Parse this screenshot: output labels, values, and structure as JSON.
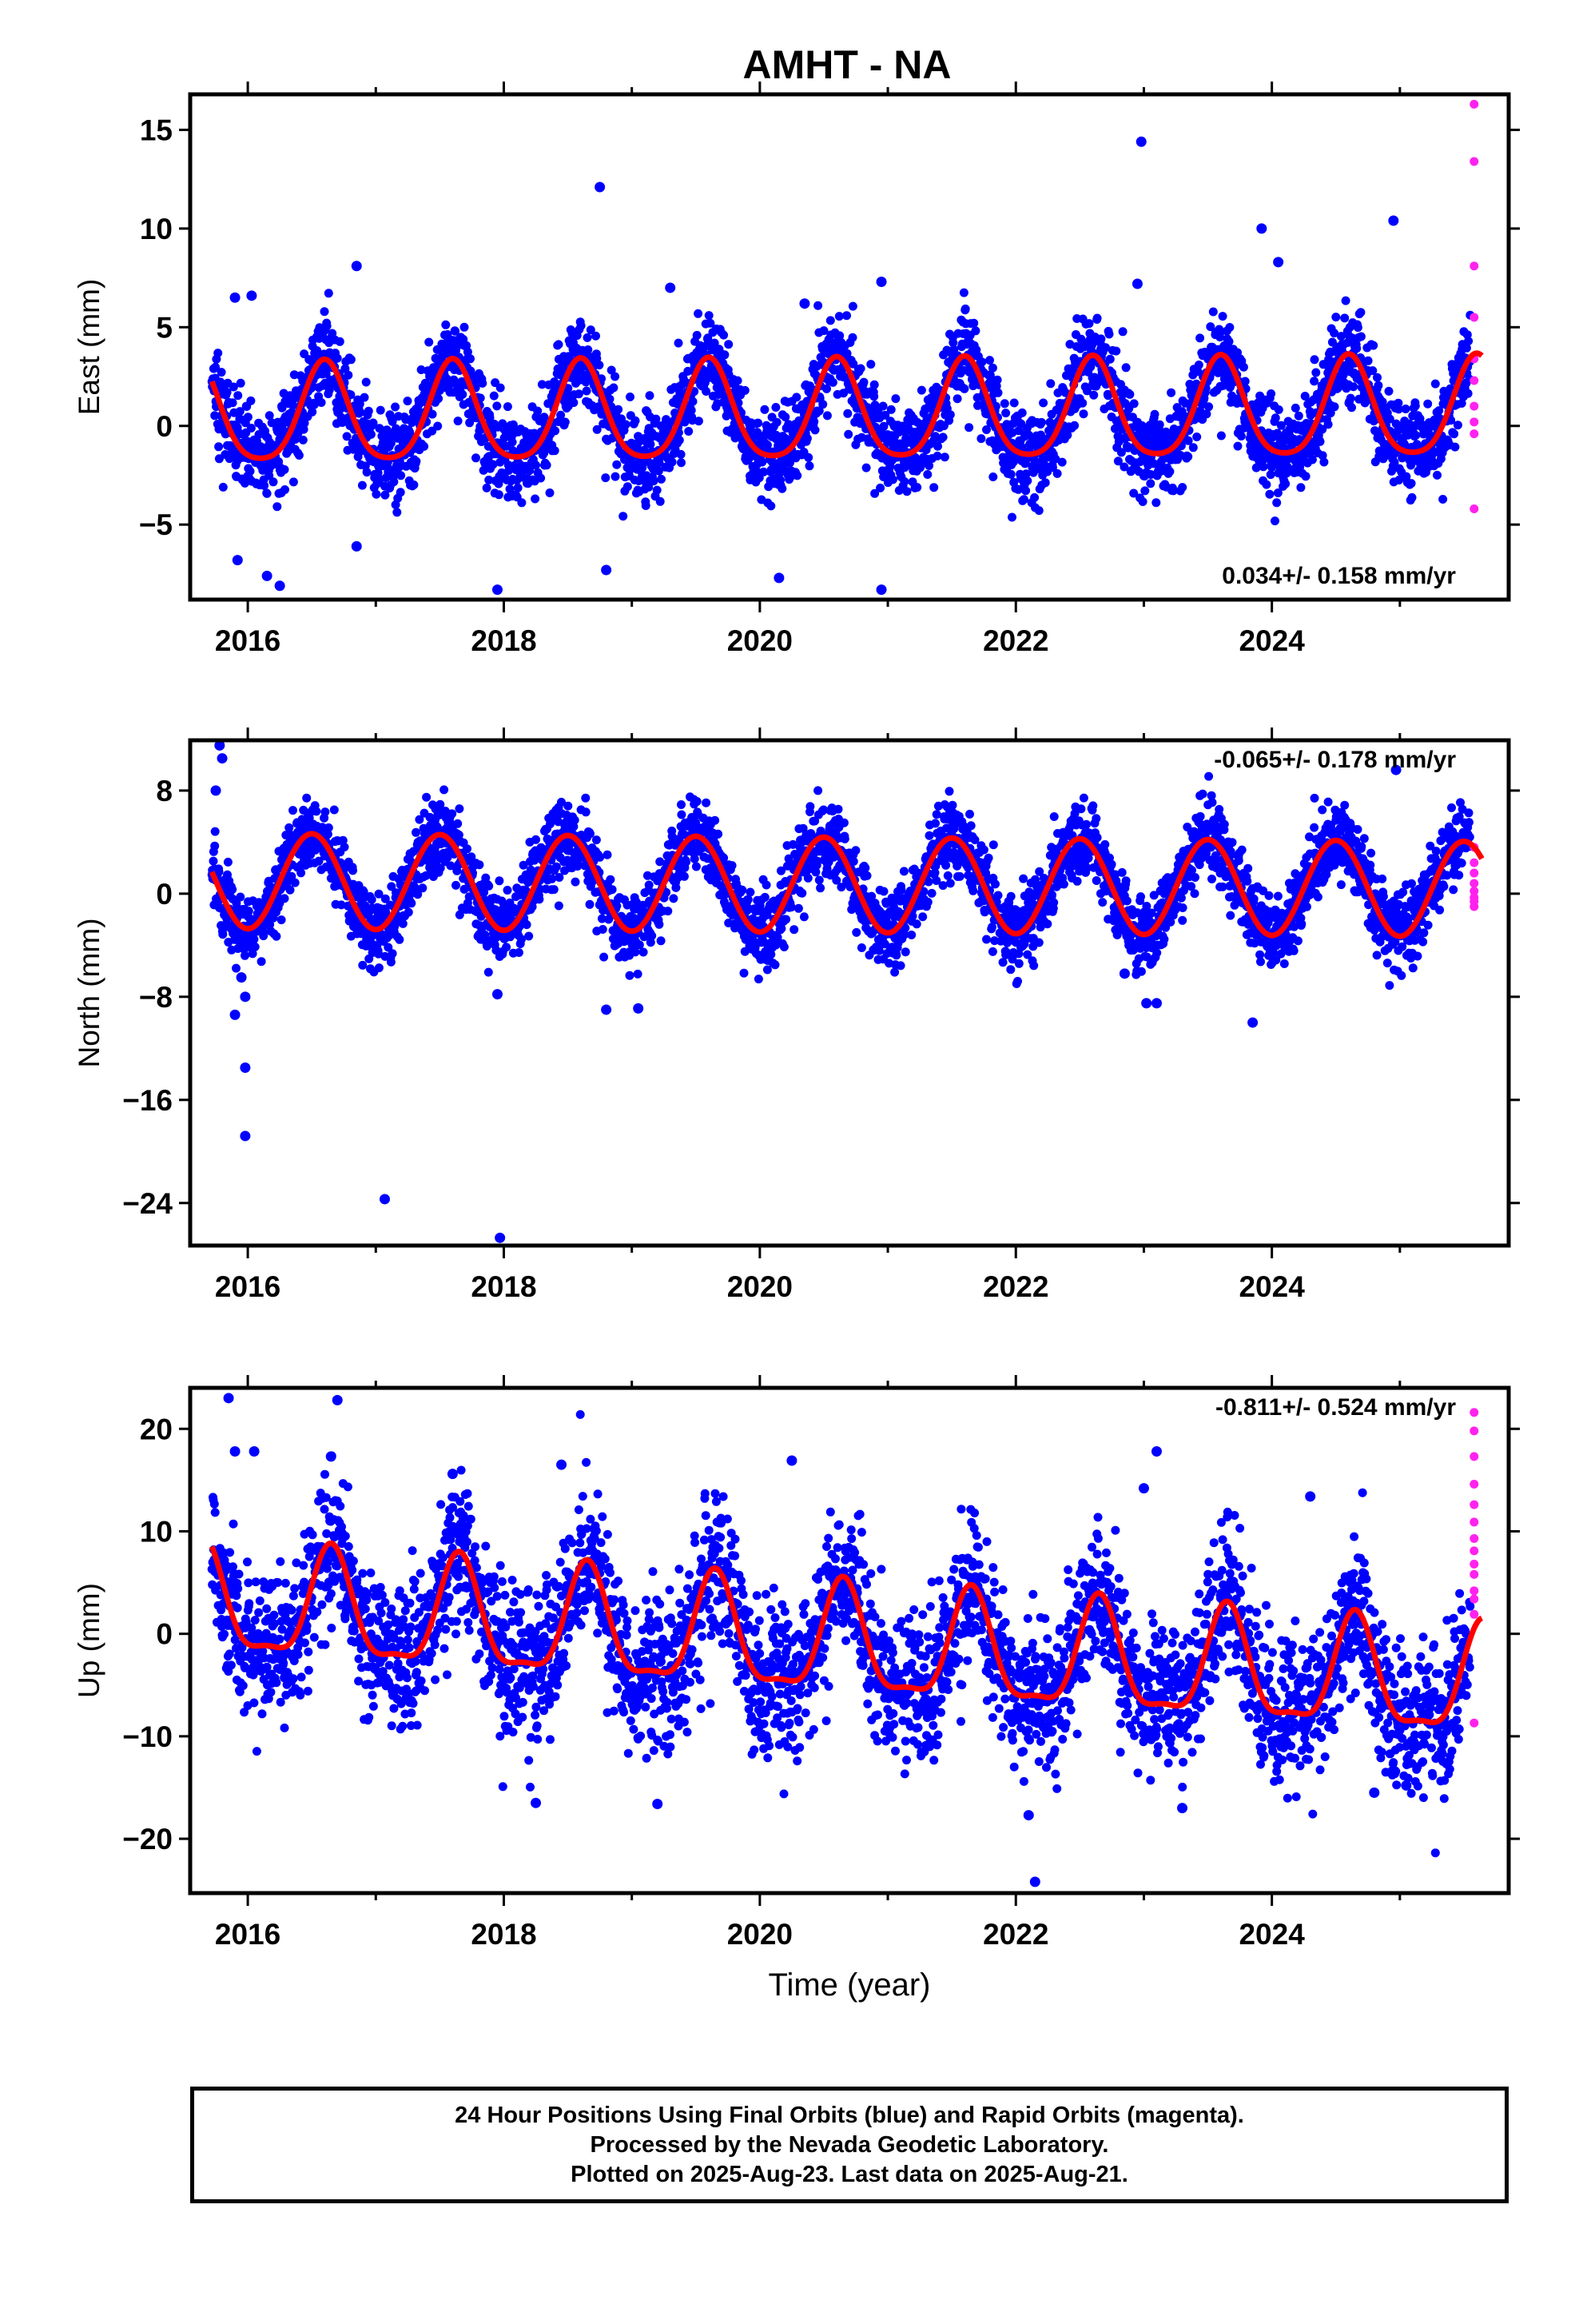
{
  "title": "AMHT - NA",
  "colors": {
    "final_orbits": "#0000ff",
    "rapid_orbits": "#ff22ee",
    "model": "#ff0000",
    "axis": "#000000"
  },
  "chart_data": [
    {
      "type": "scatter",
      "panel": "east",
      "title": "AMHT - NA",
      "xlabel": "",
      "ylabel": "East (mm)",
      "xlim": [
        2015.55,
        2025.85
      ],
      "ylim": [
        -8.8,
        16.8
      ],
      "xticks": [
        2016,
        2018,
        2020,
        2022,
        2024
      ],
      "xtick_labels": [
        "2016",
        "2018",
        "2020",
        "2022",
        "2024"
      ],
      "yticks": [
        -5,
        0,
        5,
        10,
        15
      ],
      "ytick_labels": [
        "−5",
        "0",
        "5",
        "10",
        "15"
      ],
      "rate_label": "0.034+/- 0.158 mm/yr",
      "rate_position": "bottom-right",
      "start": 2015.72,
      "end": 2025.55,
      "rapid_end": 2025.64,
      "seasonal": {
        "offset": 0.4,
        "amplitude": 2.5,
        "phase_year": 2016.6,
        "second_harmonic": 0.45
      },
      "scatter_sd": 1.15,
      "rate_mm_per_yr": 0.034,
      "series": [
        {
          "name": "Final Orbits (blue)",
          "values": [
            [
              2015.9,
              6.5
            ],
            [
              2016.03,
              6.6
            ],
            [
              2016.85,
              8.1
            ],
            [
              2018.75,
              12.1
            ],
            [
              2019.3,
              7.0
            ],
            [
              2020.35,
              6.2
            ],
            [
              2020.95,
              7.3
            ],
            [
              2022.98,
              14.4
            ],
            [
              2022.95,
              7.2
            ],
            [
              2023.92,
              10.0
            ],
            [
              2024.05,
              8.3
            ],
            [
              2024.95,
              10.4
            ],
            [
              2015.92,
              -6.8
            ],
            [
              2016.15,
              -7.6
            ],
            [
              2016.25,
              -8.1
            ],
            [
              2017.95,
              -8.3
            ],
            [
              2018.8,
              -7.3
            ],
            [
              2020.15,
              -7.7
            ],
            [
              2020.95,
              -8.3
            ],
            [
              2016.85,
              -6.1
            ]
          ]
        },
        {
          "name": "Rapid Orbits (magenta)",
          "values": [
            [
              2025.58,
              16.3
            ],
            [
              2025.58,
              13.4
            ],
            [
              2025.58,
              8.1
            ],
            [
              2025.58,
              5.5
            ],
            [
              2025.58,
              3.4
            ],
            [
              2025.58,
              2.3
            ],
            [
              2025.58,
              1.0
            ],
            [
              2025.58,
              0.2
            ],
            [
              2025.58,
              -0.4
            ],
            [
              2025.58,
              -4.2
            ]
          ]
        }
      ]
    },
    {
      "type": "scatter",
      "panel": "north",
      "xlabel": "",
      "ylabel": "North (mm)",
      "xlim": [
        2015.55,
        2025.85
      ],
      "ylim": [
        -27.3,
        11.9
      ],
      "xticks": [
        2016,
        2018,
        2020,
        2022,
        2024
      ],
      "xtick_labels": [
        "2016",
        "2018",
        "2020",
        "2022",
        "2024"
      ],
      "yticks": [
        -24,
        -16,
        -8,
        0,
        8
      ],
      "ytick_labels": [
        "−24",
        "−16",
        "−8",
        "0",
        "8"
      ],
      "rate_label": "-0.065+/- 0.178 mm/yr",
      "rate_position": "top-right",
      "start": 2015.72,
      "end": 2025.55,
      "rapid_end": 2025.64,
      "seasonal": {
        "offset": 1.0,
        "amplitude": 3.7,
        "phase_year": 2016.5,
        "second_harmonic": 0.0
      },
      "scatter_sd": 1.45,
      "rate_mm_per_yr": -0.065,
      "series": [
        {
          "name": "Final Orbits (blue)",
          "values": [
            [
              2015.78,
              11.5
            ],
            [
              2015.8,
              10.5
            ],
            [
              2015.75,
              8.0
            ],
            [
              2015.95,
              -6.5
            ],
            [
              2015.98,
              -8.0
            ],
            [
              2015.9,
              -9.4
            ],
            [
              2015.98,
              -13.5
            ],
            [
              2015.98,
              -18.8
            ],
            [
              2017.07,
              -23.7
            ],
            [
              2017.97,
              -26.7
            ],
            [
              2017.95,
              -7.8
            ],
            [
              2018.8,
              -9.0
            ],
            [
              2019.05,
              -8.9
            ],
            [
              2023.02,
              -8.5
            ],
            [
              2023.1,
              -8.5
            ],
            [
              2023.85,
              -10.0
            ],
            [
              2024.97,
              9.6
            ],
            [
              2022.85,
              -6.2
            ]
          ]
        },
        {
          "name": "Rapid Orbits (magenta)",
          "values": [
            [
              2025.58,
              3.6
            ],
            [
              2025.58,
              2.4
            ],
            [
              2025.58,
              1.6
            ],
            [
              2025.58,
              0.8
            ],
            [
              2025.58,
              0.2
            ],
            [
              2025.58,
              -0.3
            ],
            [
              2025.58,
              -0.6
            ],
            [
              2025.58,
              -1.0
            ]
          ]
        }
      ]
    },
    {
      "type": "scatter",
      "panel": "up",
      "xlabel": "Time (year)",
      "ylabel": "Up (mm)",
      "xlim": [
        2015.55,
        2025.85
      ],
      "ylim": [
        -25.3,
        24.0
      ],
      "xticks": [
        2016,
        2018,
        2020,
        2022,
        2024
      ],
      "xtick_labels": [
        "2016",
        "2018",
        "2020",
        "2022",
        "2024"
      ],
      "yticks": [
        -20,
        -10,
        0,
        10,
        20
      ],
      "ytick_labels": [
        "−20",
        "−10",
        "0",
        "10",
        "20"
      ],
      "rate_label": "-0.811+/- 0.524 mm/yr",
      "rate_position": "top-right",
      "start": 2015.72,
      "end": 2025.55,
      "rapid_end": 2025.64,
      "seasonal": {
        "offset": 2.8,
        "amplitude": 5.2,
        "phase_year": 2016.65,
        "second_harmonic": 1.6
      },
      "scatter_sd": 3.6,
      "rate_mm_per_yr": -0.811,
      "series": [
        {
          "name": "Final Orbits (blue)",
          "values": [
            [
              2015.85,
              23.0
            ],
            [
              2016.7,
              22.8
            ],
            [
              2015.9,
              17.8
            ],
            [
              2016.05,
              17.8
            ],
            [
              2016.65,
              17.3
            ],
            [
              2017.6,
              15.6
            ],
            [
              2018.45,
              16.5
            ],
            [
              2020.25,
              16.9
            ],
            [
              2023.0,
              14.2
            ],
            [
              2023.1,
              17.8
            ],
            [
              2024.3,
              13.4
            ],
            [
              2018.25,
              -16.5
            ],
            [
              2019.2,
              -16.6
            ],
            [
              2022.1,
              -17.7
            ],
            [
              2022.15,
              -24.2
            ],
            [
              2023.3,
              -17.0
            ],
            [
              2024.8,
              -15.5
            ],
            [
              2025.05,
              -14.8
            ]
          ]
        },
        {
          "name": "Rapid Orbits (magenta)",
          "values": [
            [
              2025.58,
              21.6
            ],
            [
              2025.58,
              19.8
            ],
            [
              2025.58,
              17.3
            ],
            [
              2025.58,
              14.6
            ],
            [
              2025.58,
              12.6
            ],
            [
              2025.58,
              10.9
            ],
            [
              2025.58,
              9.3
            ],
            [
              2025.58,
              8.1
            ],
            [
              2025.58,
              6.8
            ],
            [
              2025.58,
              5.8
            ],
            [
              2025.58,
              4.2
            ],
            [
              2025.58,
              3.4
            ],
            [
              2025.58,
              1.9
            ],
            [
              2025.58,
              -8.7
            ]
          ]
        }
      ]
    }
  ],
  "footer": {
    "line1": "24 Hour Positions Using Final Orbits (blue) and Rapid Orbits (magenta).",
    "line2": "Processed by the Nevada Geodetic Laboratory.",
    "line3": "Plotted on 2025-Aug-23. Last data on 2025-Aug-21."
  }
}
